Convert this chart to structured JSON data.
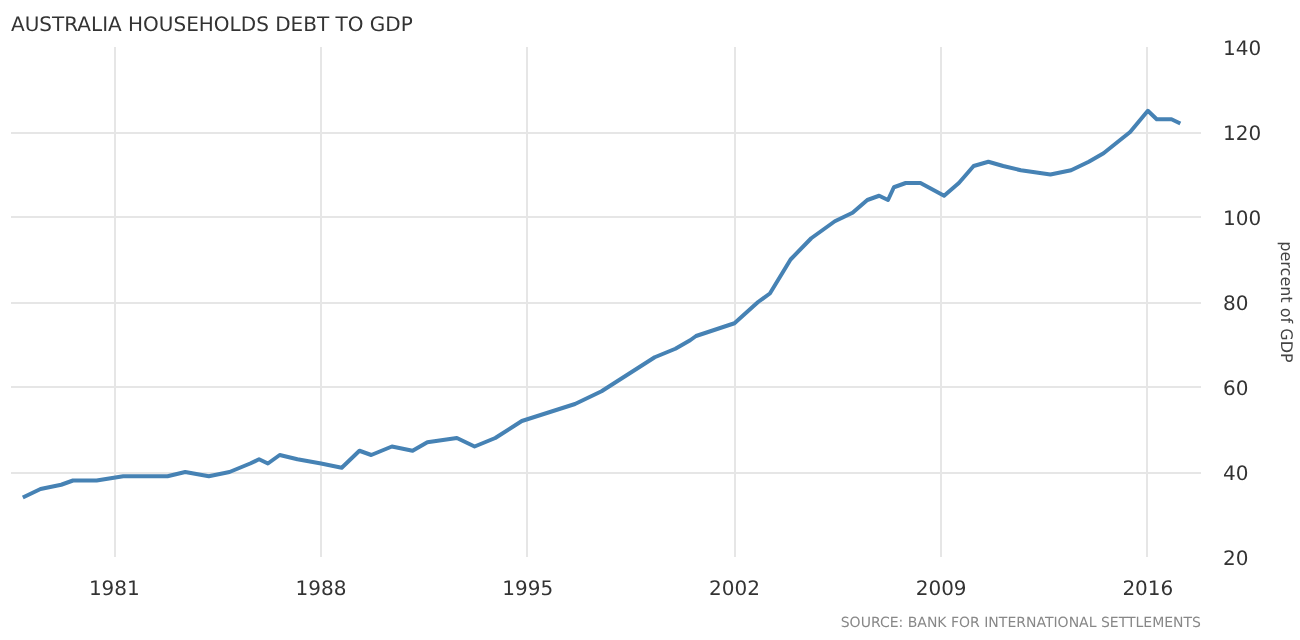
{
  "chart_data": {
    "type": "line",
    "title": "AUSTRALIA HOUSEHOLDS DEBT TO GDP",
    "ylabel": "percent of GDP",
    "annotations": [
      "SOURCE: BANK FOR INTERNATIONAL SETTLEMENTS"
    ],
    "x": [
      1977.9,
      1978.5,
      1979.2,
      1979.6,
      1980.4,
      1981.3,
      1982.8,
      1983.4,
      1984.2,
      1984.9,
      1985.6,
      1985.9,
      1986.2,
      1986.6,
      1987.2,
      1988.0,
      1988.7,
      1989.3,
      1989.7,
      1990.4,
      1991.1,
      1991.6,
      1992.6,
      1993.2,
      1993.9,
      1994.8,
      1995.7,
      1996.6,
      1997.5,
      1998.4,
      1999.3,
      2000.0,
      2000.5,
      2000.7,
      2002.0,
      2002.8,
      2003.2,
      2003.9,
      2004.6,
      2005.4,
      2006.0,
      2006.5,
      2006.9,
      2007.2,
      2007.4,
      2007.8,
      2008.3,
      2009.1,
      2009.6,
      2010.1,
      2010.6,
      2011.1,
      2011.7,
      2012.7,
      2013.4,
      2014.0,
      2014.5,
      2015.4,
      2016.0,
      2016.3,
      2016.8,
      2017.1
    ],
    "series": [
      {
        "color": "#4682b4",
        "values": [
          34,
          36,
          37,
          38,
          38,
          39,
          39,
          40,
          39,
          40,
          42,
          43,
          42,
          44,
          43,
          42,
          41,
          45,
          44,
          46,
          45,
          47,
          48,
          46,
          48,
          52,
          54,
          56,
          59,
          63,
          67,
          69,
          71,
          72,
          75,
          80,
          82,
          90,
          95,
          99,
          101,
          104,
          105,
          104,
          107,
          108,
          108,
          105,
          108,
          112,
          113,
          112,
          111,
          110,
          111,
          113,
          115,
          120,
          125,
          123,
          123,
          122
        ]
      }
    ],
    "xlim": [
      1977.5,
      2017.8
    ],
    "ylim": [
      20,
      140
    ],
    "xticks": [
      1981,
      1988,
      1995,
      2002,
      2009,
      2016
    ],
    "yticks": [
      20,
      40,
      60,
      80,
      100,
      120,
      140
    ],
    "grid": true,
    "marker": "none",
    "line_style": "solid"
  }
}
